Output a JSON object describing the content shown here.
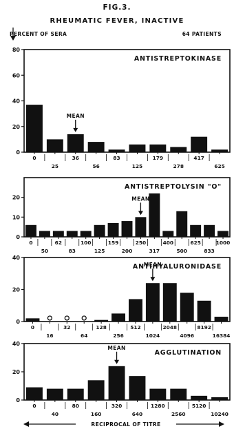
{
  "figure": {
    "fig_label": "FIG.3.",
    "title": "RHEUMATIC FEVER, INACTIVE",
    "y_unit": "PERCENT OF SERA",
    "patients": "64 PATIENTS",
    "x_footer": "RECIPROCAL OF TITRE"
  },
  "chart_data": [
    {
      "type": "bar",
      "title": "ANTISTREPTOKINASE",
      "ylabel": "PERCENT OF SERA",
      "ylim": [
        0,
        80
      ],
      "yticks": [
        0,
        20,
        40,
        60,
        80
      ],
      "categories": [
        "0",
        "25",
        "36",
        "56",
        "83",
        "125",
        "179",
        "278",
        "417",
        "625"
      ],
      "values": [
        37,
        10,
        14,
        8,
        2,
        6,
        6,
        4,
        12,
        2
      ],
      "mean_label": "MEAN",
      "mean_at": "36",
      "zero_markers": []
    },
    {
      "type": "bar",
      "title": "ANTISTREPTOLYSIN \"O\"",
      "ylim": [
        0,
        30
      ],
      "yticks": [
        0,
        10,
        20
      ],
      "categories": [
        "0",
        "50",
        "62",
        "83",
        "100",
        "125",
        "159",
        "200",
        "250",
        "317",
        "400",
        "500",
        "625",
        "833",
        "1000"
      ],
      "values": [
        6,
        3,
        3,
        3,
        3,
        6,
        7,
        8,
        10,
        22,
        3,
        13,
        6,
        6,
        3
      ],
      "mean_label": "MEAN",
      "mean_at": "250",
      "zero_markers": []
    },
    {
      "type": "bar",
      "title": "ANTIHYALURONIDASE",
      "ylim": [
        0,
        40
      ],
      "yticks": [
        0,
        20,
        40
      ],
      "categories": [
        "0",
        "16",
        "32",
        "64",
        "128",
        "256",
        "512",
        "1024",
        "2048",
        "4096",
        "8192",
        "16384"
      ],
      "values": [
        2,
        0,
        0,
        0,
        1,
        5,
        14,
        24,
        24,
        18,
        13,
        3
      ],
      "mean_label": "MEAN",
      "mean_at": "1024",
      "zero_markers": [
        "16",
        "32",
        "64"
      ]
    },
    {
      "type": "bar",
      "title": "AGGLUTINATION",
      "ylim": [
        0,
        40
      ],
      "yticks": [
        0,
        20,
        40
      ],
      "categories": [
        "0",
        "40",
        "80",
        "160",
        "320",
        "640",
        "1280",
        "2560",
        "5120",
        "10240"
      ],
      "values": [
        9,
        8,
        8,
        14,
        24,
        17,
        8,
        8,
        3,
        2
      ],
      "mean_label": "MEAN",
      "mean_at": "320",
      "zero_markers": []
    }
  ]
}
